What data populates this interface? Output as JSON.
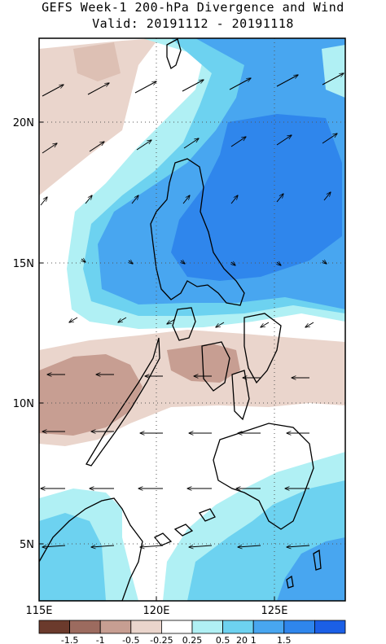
{
  "title": {
    "line1": "GEFS Week-1 200-hPa Divergence and Wind",
    "line2": "Valid: 20191112 - 20191118"
  },
  "map": {
    "lon_range": [
      115,
      128
    ],
    "lat_range": [
      3,
      23
    ],
    "lon_ticks": [
      {
        "value": 115,
        "label": "115E"
      },
      {
        "value": 120,
        "label": "120E"
      },
      {
        "value": 125,
        "label": "125E"
      }
    ],
    "lat_ticks": [
      {
        "value": 20,
        "label": "20N"
      },
      {
        "value": 15,
        "label": "15N"
      },
      {
        "value": 10,
        "label": "10N"
      },
      {
        "value": 5,
        "label": "5N"
      }
    ],
    "grid": "dotted"
  },
  "colorbar": {
    "colors": [
      "#6b3a2c",
      "#9c6b5f",
      "#c79e92",
      "#ead5cc",
      "#ffffff",
      "#b0f0f4",
      "#6dd2f0",
      "#48a6f0",
      "#2f86ec",
      "#1b5fe6"
    ],
    "labels": [
      "-1.5",
      "-1",
      "-0.5",
      "-0.25",
      "0.25",
      "0.5",
      "1",
      "1.5"
    ],
    "overlay_text": "20"
  },
  "colors": {
    "neg_strong": "#c79e92",
    "neg_weak": "#ead5cc",
    "pos_weak": "#b0f0f4",
    "pos_mid": "#6dd2f0",
    "pos_strong": "#48a6f0",
    "pos_max": "#2f86ec"
  }
}
